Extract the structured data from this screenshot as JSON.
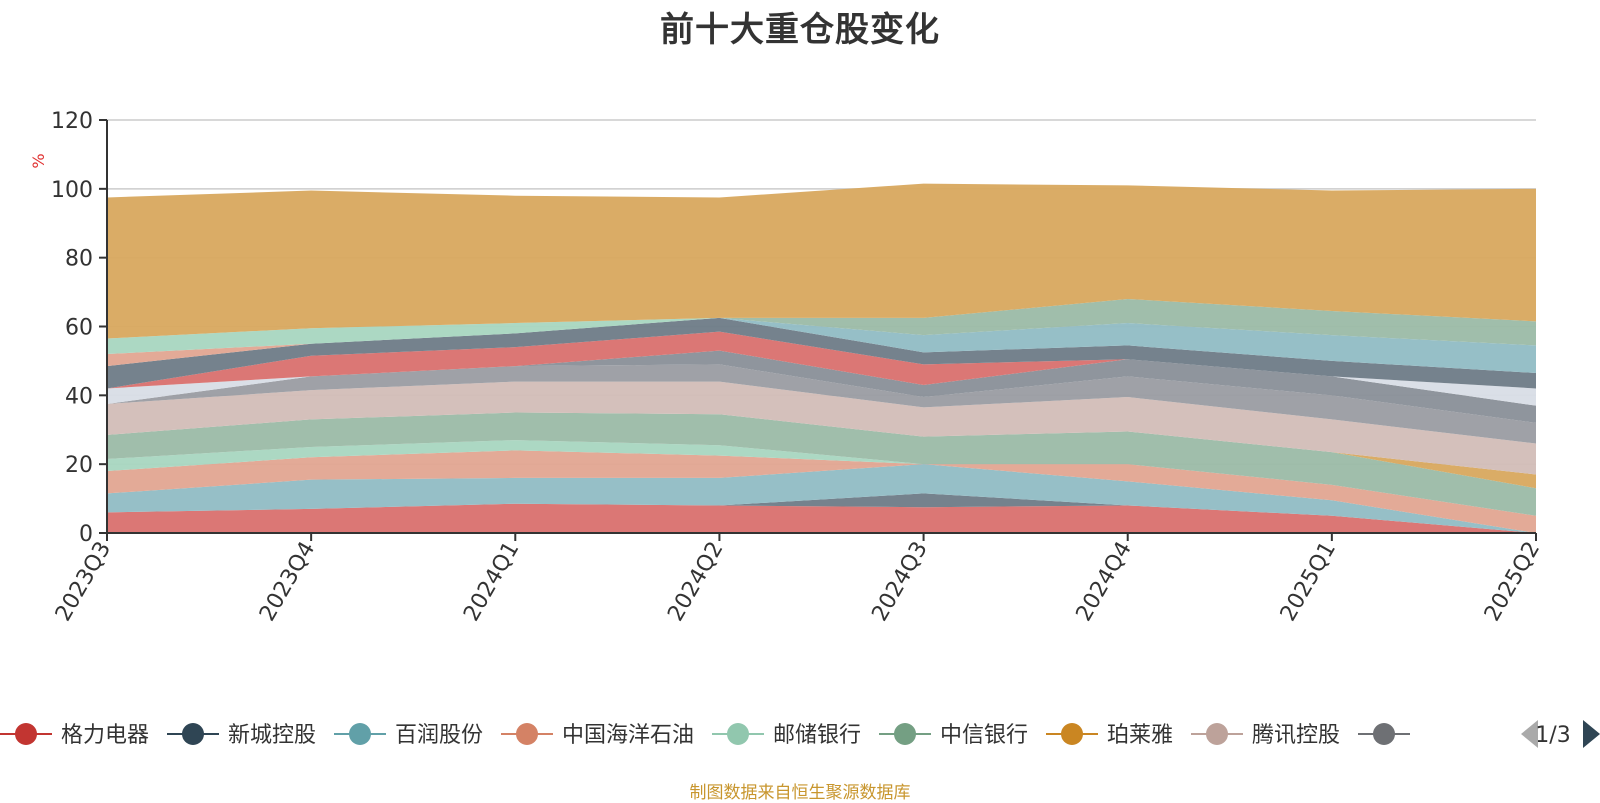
{
  "chart_data": {
    "type": "area",
    "stacked": true,
    "title": "前十大重仓股变化",
    "ylabel": "%",
    "ylim": [
      0,
      120
    ],
    "yticks": [
      0,
      20,
      40,
      60,
      80,
      100,
      120
    ],
    "grid": true,
    "categories": [
      "2023Q3",
      "2023Q4",
      "2024Q1",
      "2024Q2",
      "2024Q3",
      "2024Q4",
      "2025Q1",
      "2025Q2"
    ],
    "series": [
      {
        "name": "格力电器",
        "color": "#d9706e",
        "values": [
          6,
          7,
          8.5,
          8,
          7.5,
          8,
          5,
          0
        ]
      },
      {
        "name": "新城控股",
        "color": "#6e7b87",
        "values": [
          0,
          0,
          0,
          0,
          4,
          0,
          0,
          0
        ]
      },
      {
        "name": "百润股份",
        "color": "#90bcc4",
        "values": [
          5.5,
          8.5,
          7.5,
          8,
          8.5,
          7,
          4.5,
          0
        ]
      },
      {
        "name": "中国海洋石油",
        "color": "#e2a591",
        "values": [
          6.5,
          6.5,
          8,
          6.5,
          0,
          5,
          4.5,
          5
        ]
      },
      {
        "name": "邮储银行",
        "color": "#a8d6c0",
        "values": [
          3.5,
          3,
          3,
          3,
          0,
          0,
          0,
          0
        ]
      },
      {
        "name": "中信银行",
        "color": "#9bbaa6",
        "values": [
          7,
          8,
          8,
          9,
          8,
          9.5,
          9.5,
          8
        ]
      },
      {
        "name": "珀莱雅",
        "color": "#d8a85e",
        "values": [
          0,
          0,
          0,
          0,
          0,
          0,
          0,
          4
        ]
      },
      {
        "name": "腾讯控股",
        "color": "#d2bdb7",
        "values": [
          9,
          8.5,
          9,
          9.5,
          8.5,
          10,
          9.5,
          9
        ]
      },
      {
        "name": "",
        "color": "#9a9ca2",
        "values": [
          0,
          4,
          4.5,
          5,
          3,
          6,
          7,
          6
        ]
      },
      {
        "name": "",
        "color": "#898f98",
        "values": [
          0,
          0,
          0,
          4,
          3.5,
          5,
          5.5,
          5
        ]
      },
      {
        "name": "",
        "color": "#d8dde6",
        "values": [
          4.5,
          0,
          0,
          0,
          0,
          0,
          0,
          5
        ]
      },
      {
        "name": "",
        "color": "#d9706e",
        "values": [
          0,
          6,
          5.5,
          5.5,
          6,
          0,
          0,
          0
        ]
      },
      {
        "name": "",
        "color": "#6e7b87",
        "values": [
          6.5,
          3.5,
          4,
          4,
          3.5,
          4,
          4.5,
          4.5
        ]
      },
      {
        "name": "",
        "color": "#e2a591",
        "values": [
          3.5,
          0,
          0,
          0,
          0,
          0,
          0,
          0
        ]
      },
      {
        "name": "",
        "color": "#90bcc4",
        "values": [
          0,
          0,
          0,
          0,
          5,
          6.5,
          7.5,
          8
        ]
      },
      {
        "name": "",
        "color": "#a8d6c0",
        "values": [
          4.5,
          4.5,
          3,
          0,
          0,
          0,
          0,
          0
        ]
      },
      {
        "name": "",
        "color": "#9bbaa6",
        "values": [
          0,
          0,
          0,
          0,
          5,
          7,
          7,
          7
        ]
      },
      {
        "name": "",
        "color": "#d8a85e",
        "values": [
          41,
          40,
          37,
          35,
          39,
          33,
          35,
          38.5
        ]
      }
    ]
  },
  "legend": {
    "items": [
      {
        "name": "格力电器",
        "color": "#c23531"
      },
      {
        "name": "新城控股",
        "color": "#2f4554"
      },
      {
        "name": "百润股份",
        "color": "#61a0a8"
      },
      {
        "name": "中国海洋石油",
        "color": "#d48265"
      },
      {
        "name": "邮储银行",
        "color": "#91c7ae"
      },
      {
        "name": "中信银行",
        "color": "#749f83"
      },
      {
        "name": "珀莱雅",
        "color": "#ca8622"
      },
      {
        "name": "腾讯控股",
        "color": "#bda29a"
      },
      {
        "name": "",
        "color": "#6e7074"
      }
    ],
    "page": "1/3"
  },
  "source_note": "制图数据来自恒生聚源数据库"
}
